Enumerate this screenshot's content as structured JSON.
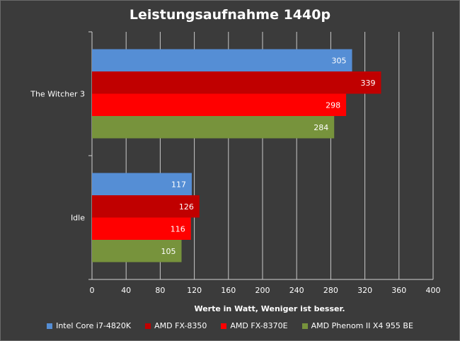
{
  "chart_data": {
    "type": "bar",
    "orientation": "horizontal",
    "title": "Leistungsaufnahme 1440p",
    "xlabel": "Werte in Watt, Weniger ist besser.",
    "ylabel": "",
    "xlim": [
      0,
      400
    ],
    "xticks": [
      "0",
      "40",
      "80",
      "120",
      "160",
      "200",
      "240",
      "280",
      "320",
      "360",
      "400"
    ],
    "grid": true,
    "legend_position": "bottom",
    "categories": [
      "The Witcher 3",
      "Idle"
    ],
    "series": [
      {
        "name": "Intel Core i7-4820K",
        "color": "#558ed5",
        "values": [
          305,
          117
        ],
        "labels": [
          "305",
          "117"
        ]
      },
      {
        "name": "AMD FX-8350",
        "color": "#c00000",
        "values": [
          339,
          126
        ],
        "labels": [
          "339",
          "126"
        ]
      },
      {
        "name": "AMD FX-8370E",
        "color": "#ff0000",
        "values": [
          298,
          116
        ],
        "labels": [
          "298",
          "116"
        ]
      },
      {
        "name": "AMD Phenom II X4 955 BE",
        "color": "#77933c",
        "values": [
          284,
          105
        ],
        "labels": [
          "284",
          "105"
        ]
      }
    ]
  }
}
